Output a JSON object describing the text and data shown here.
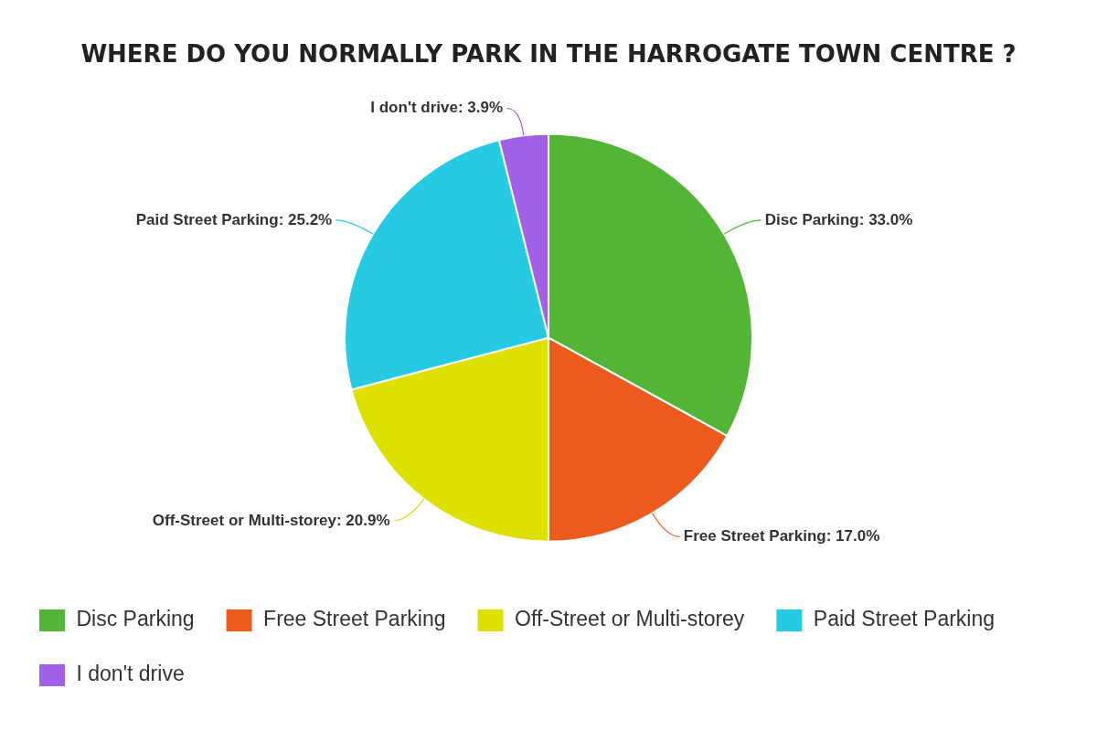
{
  "chart_data": {
    "type": "pie",
    "title": "WHERE DO YOU NORMALLY PARK IN THE HARROGATE TOWN CENTRE ?",
    "categories": [
      "Disc Parking",
      "Free Street Parking",
      "Off-Street or Multi-storey",
      "Paid Street Parking",
      "I don't drive"
    ],
    "values": [
      33.0,
      17.0,
      20.9,
      25.2,
      3.9
    ],
    "colors": [
      "#52b535",
      "#ed5a1e",
      "#dde000",
      "#26cbe3",
      "#a061e6"
    ],
    "value_labels": [
      "Disc Parking: 33.0%",
      "Free Street Parking: 17.0%",
      "Off-Street or Multi-storey: 20.9%",
      "Paid Street Parking: 25.2%",
      "I don't drive: 3.9%"
    ],
    "legend": "bottom"
  }
}
